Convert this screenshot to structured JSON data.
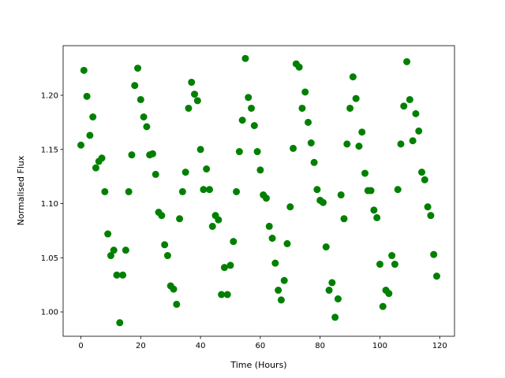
{
  "chart_data": {
    "type": "scatter",
    "x_label": "Time (Hours)",
    "y_label": "Normalised Flux",
    "color": "#008000",
    "grid": false,
    "x": [
      0,
      1,
      2,
      3,
      4,
      5,
      6,
      7,
      8,
      9,
      10,
      11,
      12,
      13,
      14,
      15,
      16,
      17,
      18,
      19,
      20,
      21,
      22,
      23,
      24,
      25,
      26,
      27,
      28,
      29,
      30,
      31,
      32,
      33,
      34,
      35,
      36,
      37,
      38,
      39,
      40,
      41,
      42,
      43,
      44,
      45,
      46,
      47,
      48,
      49,
      50,
      51,
      52,
      53,
      54,
      55,
      56,
      57,
      58,
      59,
      60,
      61,
      62,
      63,
      64,
      65,
      66,
      67,
      68,
      69,
      70,
      71,
      72,
      73,
      74,
      75,
      76,
      77,
      78,
      79,
      80,
      81,
      82,
      83,
      84,
      85,
      86,
      87,
      88,
      89,
      90,
      91,
      92,
      93,
      94,
      95,
      96,
      97,
      98,
      99,
      100,
      101,
      102,
      103,
      104,
      105,
      106,
      107,
      108,
      109,
      110,
      111,
      112,
      113,
      114,
      115,
      116,
      117,
      118,
      119
    ],
    "values": [
      1.154,
      1.223,
      1.199,
      1.163,
      1.18,
      1.133,
      1.139,
      1.142,
      1.111,
      1.072,
      1.052,
      1.057,
      1.034,
      0.99,
      1.034,
      1.057,
      1.111,
      1.145,
      1.209,
      1.225,
      1.196,
      1.18,
      1.171,
      1.145,
      1.146,
      1.127,
      1.092,
      1.089,
      1.062,
      1.052,
      1.024,
      1.021,
      1.007,
      1.086,
      1.111,
      1.129,
      1.188,
      1.212,
      1.201,
      1.195,
      1.15,
      1.113,
      1.132,
      1.113,
      1.079,
      1.089,
      1.085,
      1.016,
      1.041,
      1.016,
      1.043,
      1.065,
      1.111,
      1.148,
      1.177,
      1.234,
      1.198,
      1.188,
      1.172,
      1.148,
      1.131,
      1.108,
      1.105,
      1.079,
      1.068,
      1.045,
      1.02,
      1.011,
      1.029,
      1.063,
      1.097,
      1.151,
      1.229,
      1.226,
      1.188,
      1.203,
      1.175,
      1.156,
      1.138,
      1.113,
      1.103,
      1.101,
      1.06,
      1.02,
      1.027,
      0.995,
      1.012,
      1.108,
      1.086,
      1.155,
      1.188,
      1.217,
      1.197,
      1.153,
      1.166,
      1.128,
      1.112,
      1.112,
      1.094,
      1.087,
      1.044,
      1.005,
      1.02,
      1.017,
      1.052,
      1.044,
      1.113,
      1.155,
      1.19,
      1.231,
      1.196,
      1.158,
      1.183,
      1.167,
      1.129,
      1.122,
      1.097,
      1.089,
      1.053,
      1.033
    ],
    "xlim": [
      -5.95,
      124.95
    ],
    "ylim": [
      0.9775,
      1.2458
    ],
    "xticks": [
      0,
      20,
      40,
      60,
      80,
      100,
      120
    ],
    "yticks": [
      {
        "value": 1.0,
        "label": "1.00"
      },
      {
        "value": 1.05,
        "label": "1.05"
      },
      {
        "value": 1.1,
        "label": "1.10"
      },
      {
        "value": 1.15,
        "label": "1.15"
      },
      {
        "value": 1.2,
        "label": "1.20"
      }
    ]
  }
}
